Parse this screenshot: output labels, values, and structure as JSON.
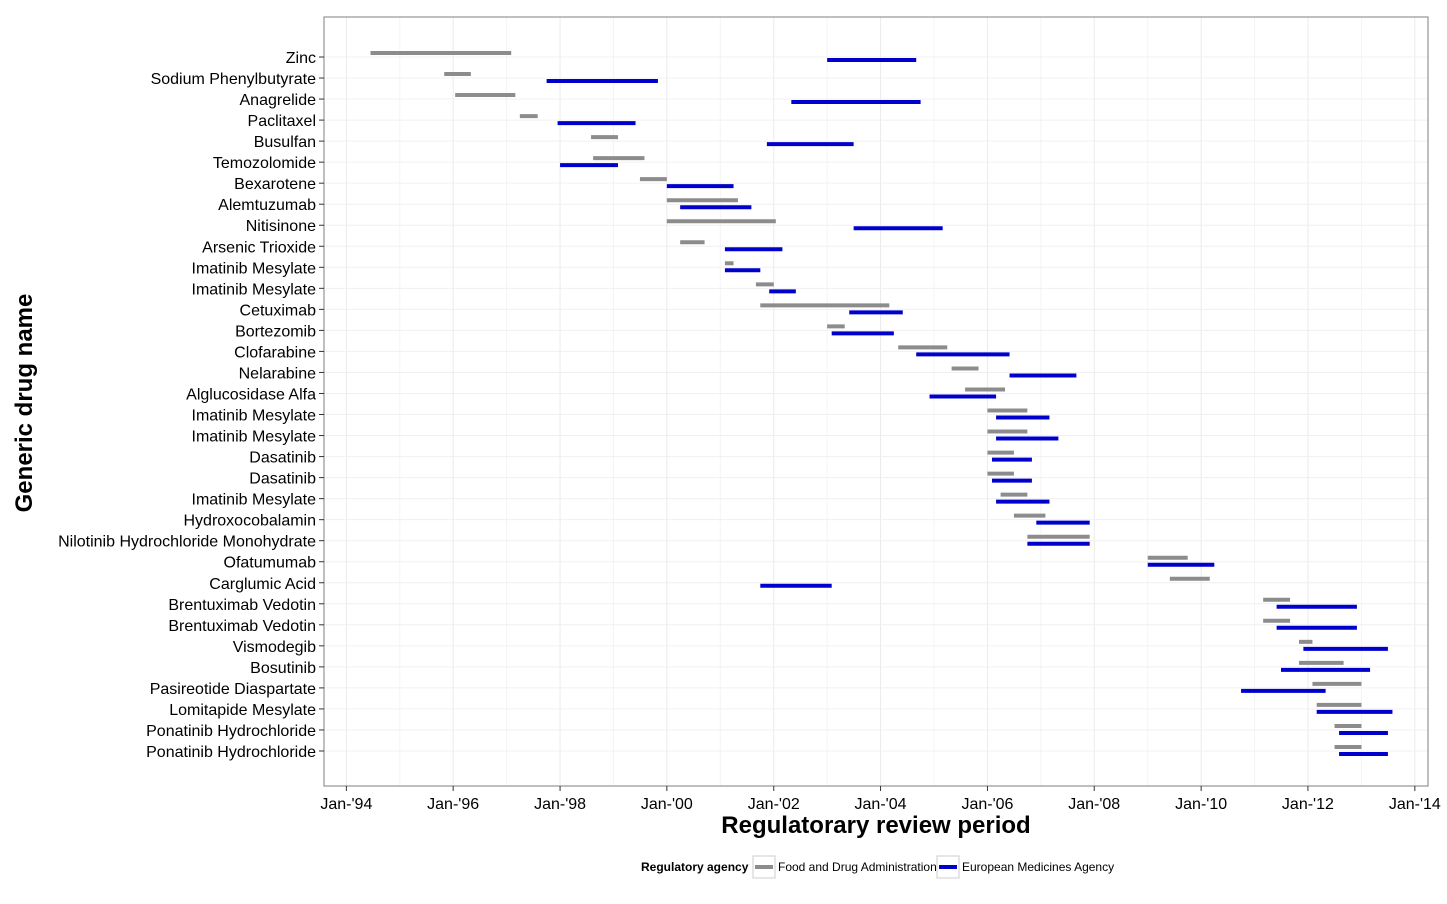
{
  "chart_data": {
    "type": "range-bar",
    "title": "",
    "xlabel": "Regulatorary review period",
    "ylabel": "Generic drug name",
    "x_scale": "date",
    "xlim": [
      "1993-08-01",
      "2014-04-01"
    ],
    "x_ticks": [
      {
        "date": "1994-01-01",
        "label": "Jan-'94"
      },
      {
        "date": "1996-01-01",
        "label": "Jan-'96"
      },
      {
        "date": "1998-01-01",
        "label": "Jan-'98"
      },
      {
        "date": "2000-01-01",
        "label": "Jan-'00"
      },
      {
        "date": "2002-01-01",
        "label": "Jan-'02"
      },
      {
        "date": "2004-01-01",
        "label": "Jan-'04"
      },
      {
        "date": "2006-01-01",
        "label": "Jan-'06"
      },
      {
        "date": "2008-01-01",
        "label": "Jan-'08"
      },
      {
        "date": "2010-01-01",
        "label": "Jan-'10"
      },
      {
        "date": "2012-01-01",
        "label": "Jan-'12"
      },
      {
        "date": "2014-01-01",
        "label": "Jan-'14"
      }
    ],
    "grid": true,
    "legend": {
      "title": "Regulatory agency",
      "placement": "bottom",
      "entries": [
        {
          "name": "Food and Drug Administration",
          "color": "#8c8c8c"
        },
        {
          "name": "European Medicines Agency",
          "color": "#0000cc"
        }
      ]
    },
    "drugs": [
      {
        "name": "Zinc",
        "fda": [
          "1994-06-15",
          "1997-02-01"
        ],
        "ema": [
          "2003-01-01",
          "2004-09-01"
        ]
      },
      {
        "name": "Sodium Phenylbutyrate",
        "fda": [
          "1995-11-01",
          "1996-05-01"
        ],
        "ema": [
          "1997-10-01",
          "1999-11-01"
        ]
      },
      {
        "name": "Anagrelide",
        "fda": [
          "1996-01-15",
          "1997-03-01"
        ],
        "ema": [
          "2002-05-01",
          "2004-10-01"
        ]
      },
      {
        "name": "Paclitaxel",
        "fda": [
          "1997-04-01",
          "1997-08-01"
        ],
        "ema": [
          "1997-12-15",
          "1999-06-01"
        ]
      },
      {
        "name": "Busulfan",
        "fda": [
          "1998-08-01",
          "1999-02-01"
        ],
        "ema": [
          "2001-11-15",
          "2003-07-01"
        ]
      },
      {
        "name": "Temozolomide",
        "fda": [
          "1998-08-15",
          "1999-08-01"
        ],
        "ema": [
          "1998-01-01",
          "1999-02-01"
        ]
      },
      {
        "name": "Bexarotene",
        "fda": [
          "1999-07-01",
          "2000-01-01"
        ],
        "ema": [
          "2000-01-01",
          "2001-04-01"
        ]
      },
      {
        "name": "Alemtuzumab",
        "fda": [
          "2000-01-01",
          "2001-05-01"
        ],
        "ema": [
          "2000-04-01",
          "2001-08-01"
        ]
      },
      {
        "name": "Nitisinone",
        "fda": [
          "2000-01-01",
          "2002-01-15"
        ],
        "ema": [
          "2003-07-01",
          "2005-03-01"
        ]
      },
      {
        "name": "Arsenic Trioxide",
        "fda": [
          "2000-04-01",
          "2000-09-15"
        ],
        "ema": [
          "2001-02-01",
          "2002-03-01"
        ]
      },
      {
        "name": "Imatinib Mesylate",
        "fda": [
          "2001-02-01",
          "2001-04-01"
        ],
        "ema": [
          "2001-02-01",
          "2001-10-01"
        ]
      },
      {
        "name": "Imatinib Mesylate",
        "fda": [
          "2001-09-01",
          "2002-01-01"
        ],
        "ema": [
          "2001-12-01",
          "2002-06-01"
        ]
      },
      {
        "name": "Cetuximab",
        "fda": [
          "2001-10-01",
          "2004-03-01"
        ],
        "ema": [
          "2003-06-01",
          "2004-06-01"
        ]
      },
      {
        "name": "Bortezomib",
        "fda": [
          "2003-01-01",
          "2003-05-01"
        ],
        "ema": [
          "2003-02-01",
          "2004-04-01"
        ]
      },
      {
        "name": "Clofarabine",
        "fda": [
          "2004-05-01",
          "2005-04-01"
        ],
        "ema": [
          "2004-09-01",
          "2006-06-01"
        ]
      },
      {
        "name": "Nelarabine",
        "fda": [
          "2005-05-01",
          "2005-11-01"
        ],
        "ema": [
          "2006-06-01",
          "2007-09-01"
        ]
      },
      {
        "name": "Alglucosidase Alfa",
        "fda": [
          "2005-08-01",
          "2006-05-01"
        ],
        "ema": [
          "2004-12-01",
          "2006-03-01"
        ]
      },
      {
        "name": "Imatinib Mesylate",
        "fda": [
          "2006-01-01",
          "2006-10-01"
        ],
        "ema": [
          "2006-03-01",
          "2007-03-01"
        ]
      },
      {
        "name": "Imatinib Mesylate",
        "fda": [
          "2006-01-01",
          "2006-10-01"
        ],
        "ema": [
          "2006-03-01",
          "2007-05-01"
        ]
      },
      {
        "name": "Dasatinib",
        "fda": [
          "2006-01-01",
          "2006-07-01"
        ],
        "ema": [
          "2006-02-01",
          "2006-11-01"
        ]
      },
      {
        "name": "Dasatinib",
        "fda": [
          "2006-01-01",
          "2006-07-01"
        ],
        "ema": [
          "2006-02-01",
          "2006-11-01"
        ]
      },
      {
        "name": "Imatinib Mesylate",
        "fda": [
          "2006-04-01",
          "2006-10-01"
        ],
        "ema": [
          "2006-03-01",
          "2007-03-01"
        ]
      },
      {
        "name": "Hydroxocobalamin",
        "fda": [
          "2006-07-01",
          "2007-02-01"
        ],
        "ema": [
          "2006-12-01",
          "2007-12-01"
        ]
      },
      {
        "name": "Nilotinib Hydrochloride Monohydrate",
        "fda": [
          "2006-10-01",
          "2007-12-01"
        ],
        "ema": [
          "2006-10-01",
          "2007-12-01"
        ]
      },
      {
        "name": "Ofatumumab",
        "fda": [
          "2009-01-01",
          "2009-10-01"
        ],
        "ema": [
          "2009-01-01",
          "2010-04-01"
        ]
      },
      {
        "name": "Carglumic Acid",
        "fda": [
          "2009-06-01",
          "2010-03-01"
        ],
        "ema": [
          "2001-10-01",
          "2003-02-01"
        ]
      },
      {
        "name": "Brentuximab Vedotin",
        "fda": [
          "2011-03-01",
          "2011-09-01"
        ],
        "ema": [
          "2011-06-01",
          "2012-12-01"
        ]
      },
      {
        "name": "Brentuximab Vedotin",
        "fda": [
          "2011-03-01",
          "2011-09-01"
        ],
        "ema": [
          "2011-06-01",
          "2012-12-01"
        ]
      },
      {
        "name": "Vismodegib",
        "fda": [
          "2011-11-01",
          "2012-02-01"
        ],
        "ema": [
          "2011-12-01",
          "2013-07-01"
        ]
      },
      {
        "name": "Bosutinib",
        "fda": [
          "2011-11-01",
          "2012-09-01"
        ],
        "ema": [
          "2011-07-01",
          "2013-03-01"
        ]
      },
      {
        "name": "Pasireotide Diaspartate",
        "fda": [
          "2012-02-01",
          "2013-01-01"
        ],
        "ema": [
          "2010-10-01",
          "2012-05-01"
        ]
      },
      {
        "name": "Lomitapide Mesylate",
        "fda": [
          "2012-03-01",
          "2013-01-01"
        ],
        "ema": [
          "2012-03-01",
          "2013-08-01"
        ]
      },
      {
        "name": "Ponatinib Hydrochloride",
        "fda": [
          "2012-07-01",
          "2013-01-01"
        ],
        "ema": [
          "2012-08-01",
          "2013-07-01"
        ]
      },
      {
        "name": "Ponatinib Hydrochloride",
        "fda": [
          "2012-07-01",
          "2013-01-01"
        ],
        "ema": [
          "2012-08-01",
          "2013-07-01"
        ]
      }
    ]
  }
}
